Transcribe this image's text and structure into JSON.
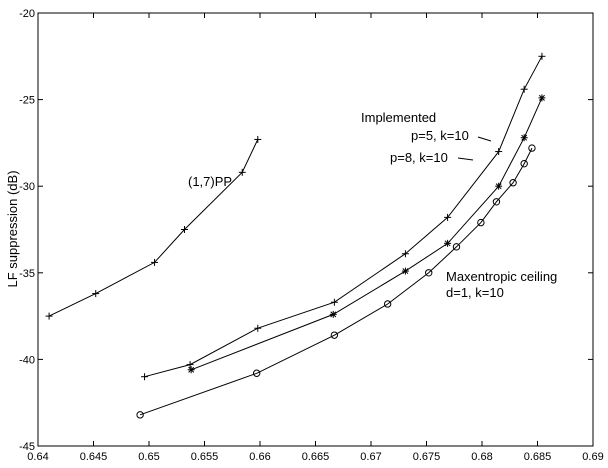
{
  "chart_data": {
    "type": "line",
    "title": "",
    "xlabel": "",
    "ylabel": "LF suppression (dB)",
    "xlim": [
      0.64,
      0.69
    ],
    "ylim": [
      -45,
      -20
    ],
    "xticks": [
      0.64,
      0.645,
      0.65,
      0.655,
      0.66,
      0.665,
      0.67,
      0.675,
      0.68,
      0.685,
      0.69
    ],
    "xtick_labels": [
      "0.64",
      "0.645",
      "0.65",
      "0.655",
      "0.66",
      "0.665",
      "0.67",
      "0.675",
      "0.68",
      "0.685",
      "0.69"
    ],
    "yticks": [
      -45,
      -40,
      -35,
      -30,
      -25,
      -20
    ],
    "ytick_labels": [
      "-45",
      "-40",
      "-35",
      "-30",
      "-25",
      "-20"
    ],
    "grid": false,
    "series": [
      {
        "marker": "plus",
        "x": [
          0.641,
          0.6452,
          0.6505,
          0.6532,
          0.6584,
          0.6598
        ],
        "y": [
          -37.5,
          -36.2,
          -34.4,
          -32.5,
          -29.2,
          -27.3
        ]
      },
      {
        "marker": "plus",
        "x": [
          0.6496,
          0.6537,
          0.6598,
          0.6667,
          0.6731,
          0.6769,
          0.6815,
          0.6838,
          0.6854
        ],
        "y": [
          -41.0,
          -40.3,
          -38.2,
          -36.7,
          -33.9,
          -31.8,
          -28.0,
          -24.4,
          -22.5
        ]
      },
      {
        "marker": "asterisk",
        "x": [
          0.6538,
          0.6666,
          0.6731,
          0.6769,
          0.6815,
          0.6838,
          0.6854
        ],
        "y": [
          -40.6,
          -37.4,
          -34.9,
          -33.3,
          -30.0,
          -27.2,
          -24.9
        ]
      },
      {
        "marker": "circle",
        "x": [
          0.6492,
          0.6597,
          0.6667,
          0.6715,
          0.6752,
          0.6777,
          0.6799,
          0.6813,
          0.6828,
          0.6838,
          0.6845
        ],
        "y": [
          -43.2,
          -40.8,
          -38.6,
          -36.8,
          -35.0,
          -33.5,
          -32.1,
          -30.9,
          -29.8,
          -28.7,
          -27.8
        ]
      }
    ],
    "annotations": {
      "pp_label": "(1,7)PP",
      "implemented": "Implemented",
      "p5": "p=5, k=10",
      "p8": "p=8, k=10",
      "maxent_1": "Maxentropic ceiling",
      "maxent_2": "d=1, k=10"
    }
  }
}
